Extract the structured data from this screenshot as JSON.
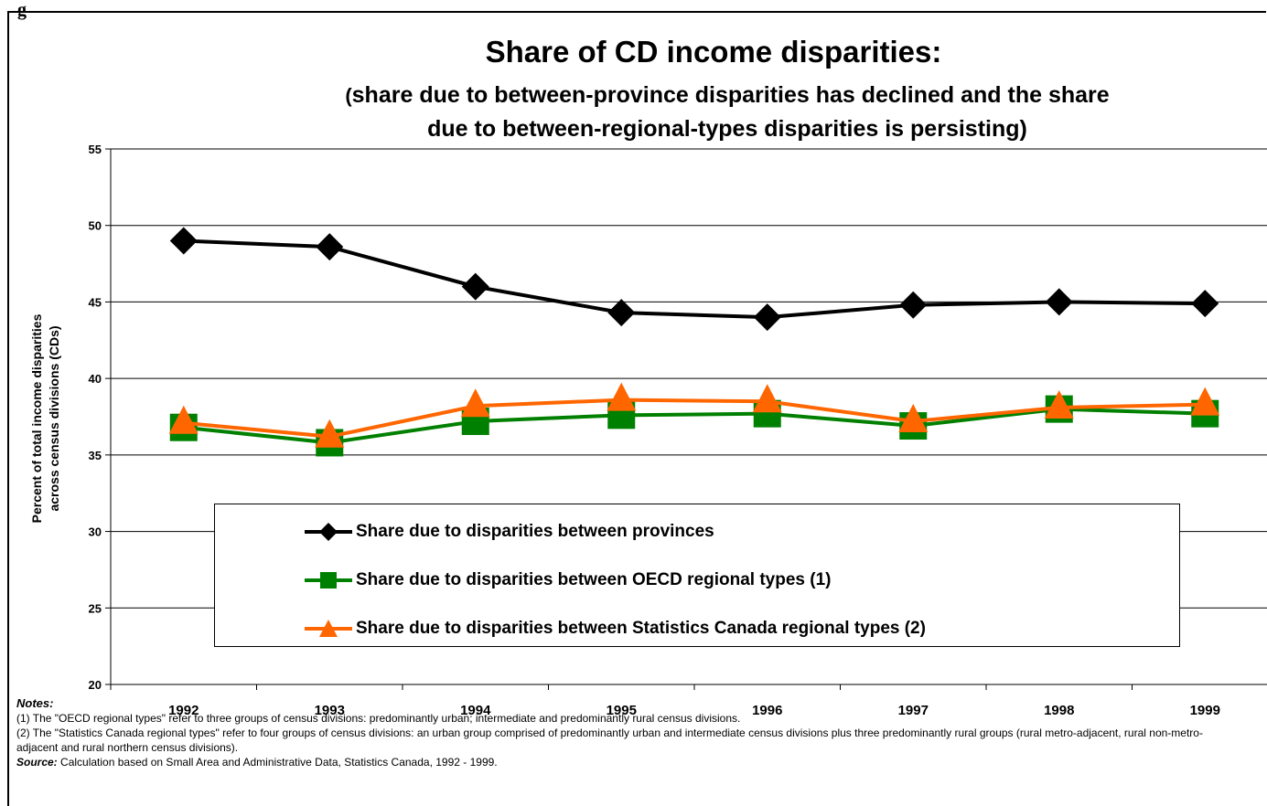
{
  "corner_label": "g",
  "notes": {
    "heading": "Notes:",
    "note1": "(1) The \"OECD regional types\" refer to three groups of census divisions: predominantly urban; intermediate and predominantly rural census divisions.",
    "note2": "(2) The \"Statistics Canada regional types\" refer to four groups of census divisions: an urban group comprised of predominantly urban and intermediate census divisions plus three predominantly rural groups (rural metro-adjacent, rural non-metro-adjacent and rural northern census divisions).",
    "source_label": "Source:",
    "source_text": " Calculation based on Small Area and Administrative Data, Statistics Canada, 1992 - 1999."
  },
  "chart_data": {
    "type": "line",
    "title": "Share of CD income disparities:",
    "subtitle_paren": "(",
    "subtitle_line1": "share due to between-province disparities has declined and the share",
    "subtitle_line2": "due to between-regional-types disparities is persisting)",
    "ylabel_line1": "Percent of total income disparities",
    "ylabel_line2": "across census divisions (CDs)",
    "xlabel": "",
    "categories": [
      "1992",
      "1993",
      "1994",
      "1995",
      "1996",
      "1997",
      "1998",
      "1999"
    ],
    "ylim": [
      20,
      55
    ],
    "yticks": [
      20,
      25,
      30,
      35,
      40,
      45,
      50,
      55
    ],
    "grid": true,
    "legend_placement": "bottom-center inside plot",
    "series": [
      {
        "name": "Share due to disparities between provinces",
        "values": [
          49.0,
          48.6,
          46.0,
          44.3,
          44.0,
          44.8,
          45.0,
          44.9
        ],
        "color": "#000000",
        "marker": "diamond"
      },
      {
        "name": "Share due to disparities between OECD regional types (1)",
        "values": [
          36.8,
          35.8,
          37.2,
          37.6,
          37.7,
          36.9,
          38.0,
          37.7
        ],
        "color": "#008000",
        "marker": "square"
      },
      {
        "name": "Share due to disparities between Statistics Canada regional types (2)",
        "values": [
          37.1,
          36.2,
          38.2,
          38.6,
          38.5,
          37.2,
          38.1,
          38.3
        ],
        "color": "#ff6600",
        "marker": "triangle"
      }
    ]
  }
}
